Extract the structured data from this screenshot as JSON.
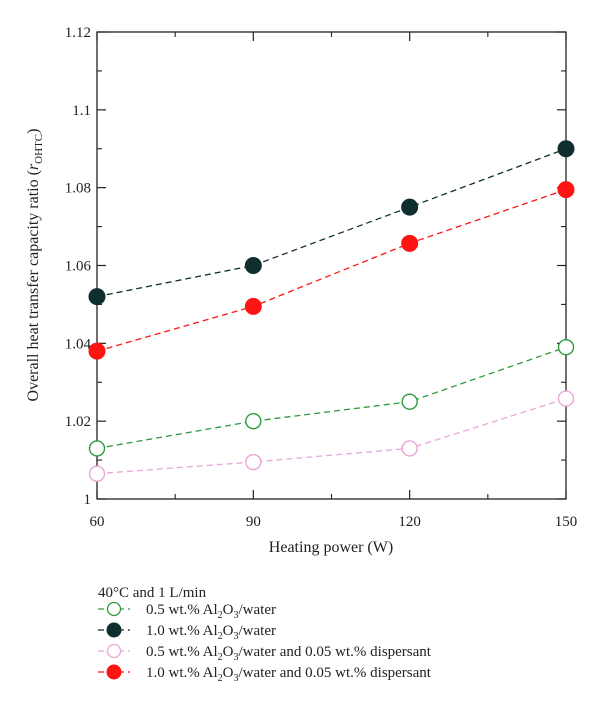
{
  "chart_data": {
    "type": "line",
    "xlabel": "Heating power (W)",
    "ylabel": {
      "prefix": "Overall heat transfer capacity ratio (",
      "symbol": "r",
      "subscript": "OHTC",
      "suffix": ")"
    },
    "xlim": [
      60,
      150
    ],
    "ylim": [
      1.0,
      1.12
    ],
    "x_ticks": [
      "60",
      "90",
      "120",
      "150"
    ],
    "y_ticks": [
      "1",
      "1.02",
      "1.04",
      "1.06",
      "1.08",
      "1.1",
      "1.12"
    ],
    "x": [
      60,
      90,
      120,
      150
    ],
    "grid": false,
    "legend": {
      "placement": "below",
      "title": "40°C and 1 L/min",
      "entries": [
        {
          "text": "0.5 wt.% ",
          "formula": [
            "Al",
            "2",
            "O",
            "3"
          ],
          "tail": "/water"
        },
        {
          "text": "1.0 wt.% ",
          "formula": [
            "Al",
            "2",
            "O",
            "3"
          ],
          "tail": "/water"
        },
        {
          "text": "0.5 wt.% ",
          "formula": [
            "Al",
            "2",
            "O",
            "3"
          ],
          "tail": "/water and 0.05 wt.% dispersant"
        },
        {
          "text": "1.0 wt.% ",
          "formula": [
            "Al",
            "2",
            "O",
            "3"
          ],
          "tail": "/water and 0.05 wt.% dispersant"
        }
      ]
    },
    "series": [
      {
        "values": [
          1.013,
          1.02,
          1.025,
          1.039
        ],
        "color": "#2e9a3e",
        "marker": "open-circle"
      },
      {
        "values": [
          1.052,
          1.06,
          1.075,
          1.09
        ],
        "color": "#0f2f2f",
        "marker": "filled-circle"
      },
      {
        "values": [
          1.0065,
          1.0095,
          1.013,
          1.0258
        ],
        "color": "#e9a6d8",
        "marker": "open-circle"
      },
      {
        "values": [
          1.038,
          1.0495,
          1.0657,
          1.0795
        ],
        "color": "#ff1414",
        "marker": "filled-circle"
      }
    ]
  }
}
